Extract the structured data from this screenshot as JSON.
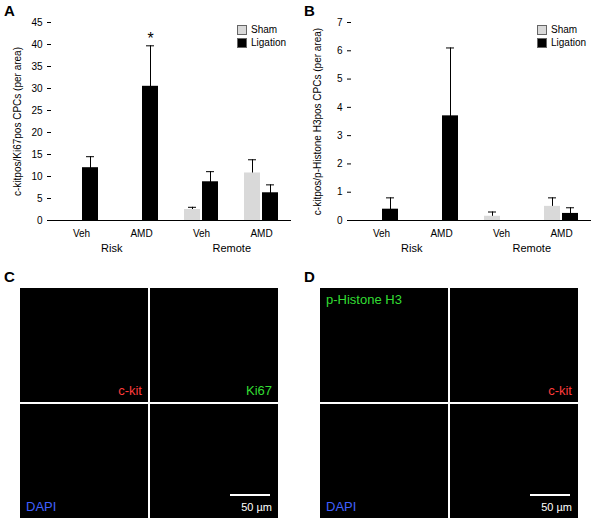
{
  "chart_data": [
    {
      "type": "bar",
      "panel_label": "A",
      "categories": [
        "Veh",
        "AMD",
        "Veh",
        "AMD"
      ],
      "group_labels": [
        "Risk",
        "Risk",
        "Remote",
        "Remote"
      ],
      "ylabel": "c-kitpos/Ki67pos CPCs (per area)",
      "ylim": [
        0,
        45
      ],
      "yticks": [
        0,
        5,
        10,
        15,
        20,
        25,
        30,
        35,
        40,
        45
      ],
      "grid": false,
      "legend": "top-right",
      "series": [
        {
          "name": "Sham",
          "color": "#d9d9d9",
          "values": [
            null,
            null,
            2.5,
            10.8
          ],
          "errors": [
            null,
            null,
            0.5,
            3.0
          ]
        },
        {
          "name": "Ligation",
          "color": "#000000",
          "values": [
            12,
            30.5,
            8.8,
            6.3
          ],
          "errors": [
            2.5,
            9.2,
            2.3,
            1.8
          ],
          "annotations": [
            null,
            "*",
            null,
            null
          ]
        }
      ]
    },
    {
      "type": "bar",
      "panel_label": "B",
      "categories": [
        "Veh",
        "AMD",
        "Veh",
        "AMD"
      ],
      "group_labels": [
        "Risk",
        "Risk",
        "Remote",
        "Remote"
      ],
      "ylabel": "c-kitpos/p-Histone H3pos CPCs (per area)",
      "ylim": [
        0,
        7
      ],
      "yticks": [
        0,
        1,
        2,
        3,
        4,
        5,
        6,
        7
      ],
      "grid": false,
      "legend": "top-right",
      "series": [
        {
          "name": "Sham",
          "color": "#d9d9d9",
          "values": [
            null,
            null,
            0.15,
            0.5
          ],
          "errors": [
            null,
            null,
            0.15,
            0.3
          ]
        },
        {
          "name": "Ligation",
          "color": "#000000",
          "values": [
            0.4,
            3.7,
            null,
            0.25
          ],
          "errors": [
            0.4,
            2.4,
            null,
            0.2
          ]
        }
      ]
    }
  ],
  "images": [
    {
      "panel_label": "C",
      "scale_bar": "50 µm",
      "channels": [
        {
          "text": "c-kit",
          "color": "#ff3b3b"
        },
        {
          "text": "Ki67",
          "color": "#33dd33"
        },
        {
          "text": "DAPI",
          "color": "#4060ff"
        }
      ]
    },
    {
      "panel_label": "D",
      "scale_bar": "50 µm",
      "channels": [
        {
          "text": "p-Histone H3",
          "color": "#33dd33"
        },
        {
          "text": "c-kit",
          "color": "#ff3b3b"
        },
        {
          "text": "DAPI",
          "color": "#4060ff"
        }
      ]
    }
  ]
}
